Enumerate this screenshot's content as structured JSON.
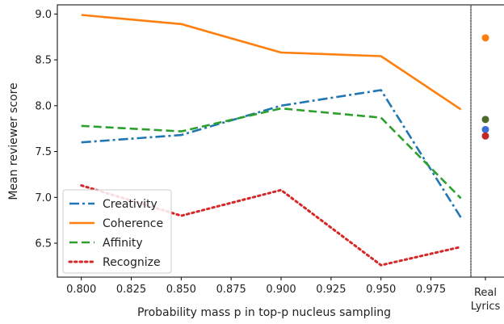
{
  "chart_data": {
    "type": "line",
    "xlabel": "Probability mass p in top-p nucleus sampling",
    "ylabel": "Mean reviewer score",
    "x": [
      0.8,
      0.85,
      0.9,
      0.95,
      0.99
    ],
    "xlim": [
      0.788,
      0.995
    ],
    "ylim": [
      6.13,
      9.1
    ],
    "x_ticks": [
      "0.800",
      "0.825",
      "0.850",
      "0.875",
      "0.900",
      "0.925",
      "0.950",
      "0.975"
    ],
    "y_ticks": [
      "6.5",
      "7.0",
      "7.5",
      "8.0",
      "8.5",
      "9.0"
    ],
    "grid": false,
    "legend_position": "lower-left",
    "series": [
      {
        "name": "Creativity",
        "color": "#1f77b4",
        "linestyle": "dashdot",
        "values": [
          7.6,
          7.68,
          8.0,
          8.17,
          6.78
        ]
      },
      {
        "name": "Coherence",
        "color": "#ff7f0e",
        "linestyle": "solid",
        "values": [
          8.99,
          8.89,
          8.58,
          8.54,
          7.96
        ]
      },
      {
        "name": "Affinity",
        "color": "#2ca02c",
        "linestyle": "dashed",
        "values": [
          7.78,
          7.72,
          7.97,
          7.87,
          6.99
        ]
      },
      {
        "name": "Recognize",
        "color": "#d62728",
        "linestyle": "dotted",
        "values": [
          7.13,
          6.8,
          7.08,
          6.26,
          6.46
        ]
      }
    ],
    "real_lyrics": {
      "label_line1": "Real",
      "label_line2": "Lyrics",
      "points": [
        {
          "series": "Coherence",
          "value": 8.74,
          "color": "#ff7f0e"
        },
        {
          "series": "Affinity",
          "value": 7.85,
          "color": "#4a6a2a"
        },
        {
          "series": "Creativity",
          "value": 7.74,
          "color": "#3a6fd8"
        },
        {
          "series": "Recognize",
          "value": 7.67,
          "color": "#c0282a"
        }
      ]
    }
  }
}
